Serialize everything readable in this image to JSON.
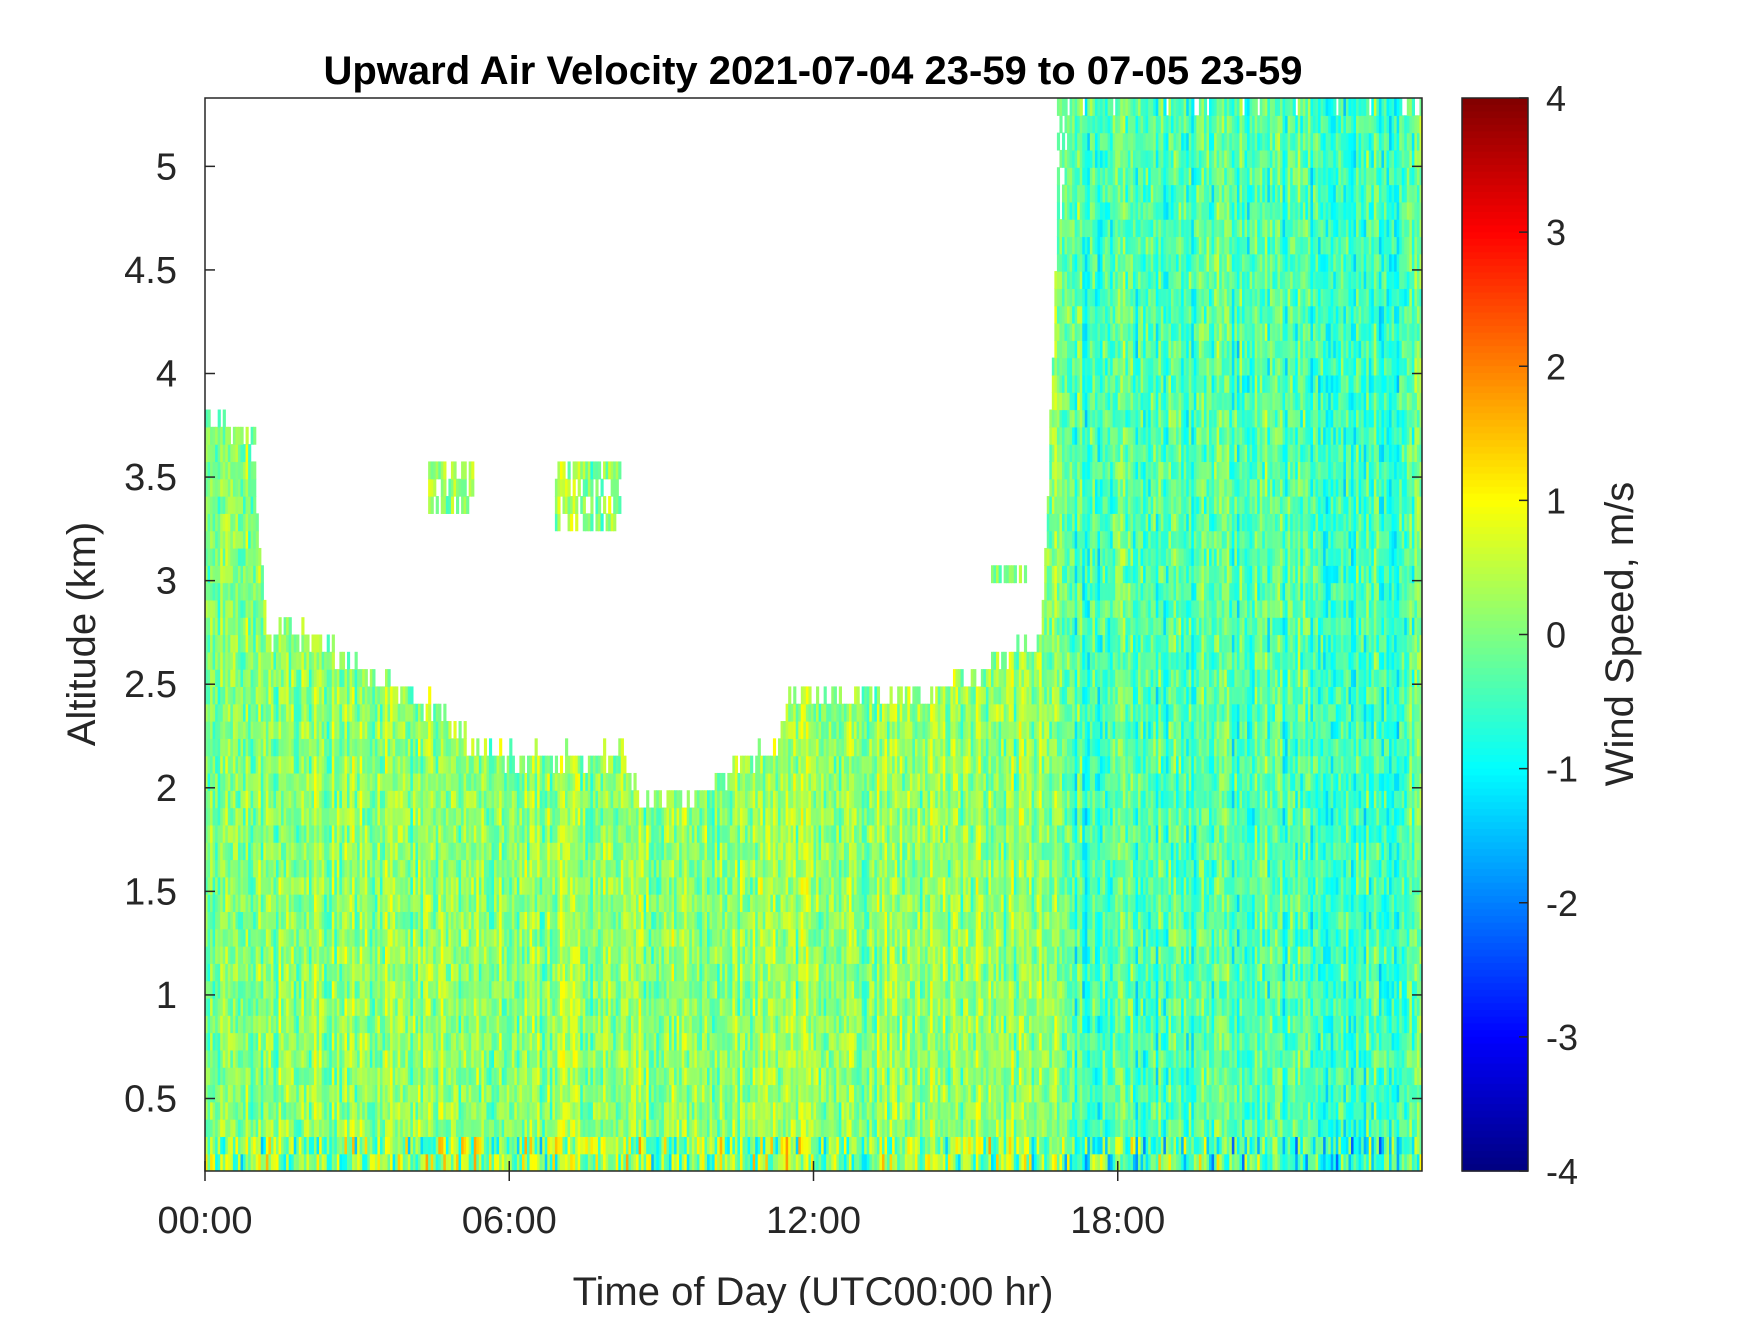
{
  "chart_data": {
    "type": "heatmap",
    "title": "Upward Air Velocity 2021-07-04 23-59 to 07-05 23-59",
    "xlabel": "Time of Day (UTC00:00 hr)",
    "ylabel": "Altitude (km)",
    "x_ticks": [
      {
        "value": 0,
        "label": "00:00"
      },
      {
        "value": 6,
        "label": "06:00"
      },
      {
        "value": 12,
        "label": "12:00"
      },
      {
        "value": 18,
        "label": "18:00"
      }
    ],
    "y_ticks": [
      {
        "value": 0.5,
        "label": "0.5"
      },
      {
        "value": 1,
        "label": "1"
      },
      {
        "value": 1.5,
        "label": "1.5"
      },
      {
        "value": 2,
        "label": "2"
      },
      {
        "value": 2.5,
        "label": "2.5"
      },
      {
        "value": 3,
        "label": "3"
      },
      {
        "value": 3.5,
        "label": "3.5"
      },
      {
        "value": 4,
        "label": "4"
      },
      {
        "value": 4.5,
        "label": "4.5"
      },
      {
        "value": 5,
        "label": "5"
      }
    ],
    "xlim": [
      0,
      24
    ],
    "ylim": [
      0.15,
      5.33
    ],
    "colorbar": {
      "label": "Wind Speed, m/s",
      "colormap": "jet",
      "clim": [
        -4,
        4
      ],
      "ticks": [
        {
          "value": 4,
          "label": "4"
        },
        {
          "value": 3,
          "label": "3"
        },
        {
          "value": 2,
          "label": "2"
        },
        {
          "value": 1,
          "label": "1"
        },
        {
          "value": 0,
          "label": "0"
        },
        {
          "value": -1,
          "label": "-1"
        },
        {
          "value": -2,
          "label": "-2"
        },
        {
          "value": -3,
          "label": "-3"
        },
        {
          "value": -4,
          "label": "-4"
        }
      ]
    },
    "data_top_km": [
      {
        "hour": 0.0,
        "top": 3.85
      },
      {
        "hour": 0.5,
        "top": 3.7
      },
      {
        "hour": 1.0,
        "top": 3.4
      },
      {
        "hour": 1.2,
        "top": 2.75
      },
      {
        "hour": 2.0,
        "top": 2.75
      },
      {
        "hour": 2.5,
        "top": 2.65
      },
      {
        "hour": 3.5,
        "top": 2.5
      },
      {
        "hour": 4.5,
        "top": 2.4
      },
      {
        "hour": 5.0,
        "top": 2.25
      },
      {
        "hour": 6.0,
        "top": 2.15
      },
      {
        "hour": 7.5,
        "top": 2.15
      },
      {
        "hour": 8.3,
        "top": 2.15
      },
      {
        "hour": 8.6,
        "top": 1.95
      },
      {
        "hour": 9.6,
        "top": 1.95
      },
      {
        "hour": 10.4,
        "top": 2.1
      },
      {
        "hour": 11.3,
        "top": 2.2
      },
      {
        "hour": 11.5,
        "top": 2.45
      },
      {
        "hour": 12.5,
        "top": 2.45
      },
      {
        "hour": 14.5,
        "top": 2.45
      },
      {
        "hour": 15.5,
        "top": 2.6
      },
      {
        "hour": 16.5,
        "top": 2.7
      },
      {
        "hour": 16.8,
        "top": 4.6
      },
      {
        "hour": 17.1,
        "top": 5.33
      },
      {
        "hour": 24.0,
        "top": 5.33
      }
    ],
    "cloud_patches": [
      {
        "hour_start": 0.0,
        "hour_end": 1.0,
        "alt_bottom": 3.25,
        "alt_top": 3.78
      },
      {
        "hour_start": 4.4,
        "hour_end": 5.3,
        "alt_bottom": 3.3,
        "alt_top": 3.55
      },
      {
        "hour_start": 6.9,
        "hour_end": 8.2,
        "alt_bottom": 3.2,
        "alt_top": 3.55
      },
      {
        "hour_start": 15.5,
        "hour_end": 16.2,
        "alt_bottom": 2.95,
        "alt_top": 3.05
      },
      {
        "hour_start": 16.8,
        "hour_end": 18.8,
        "alt_bottom": 3.6,
        "alt_top": 5.33
      },
      {
        "hour_start": 18.1,
        "hour_end": 19.3,
        "alt_bottom": 2.6,
        "alt_top": 3.65
      }
    ],
    "typical_value_range": [
      -1.5,
      1.0
    ]
  }
}
